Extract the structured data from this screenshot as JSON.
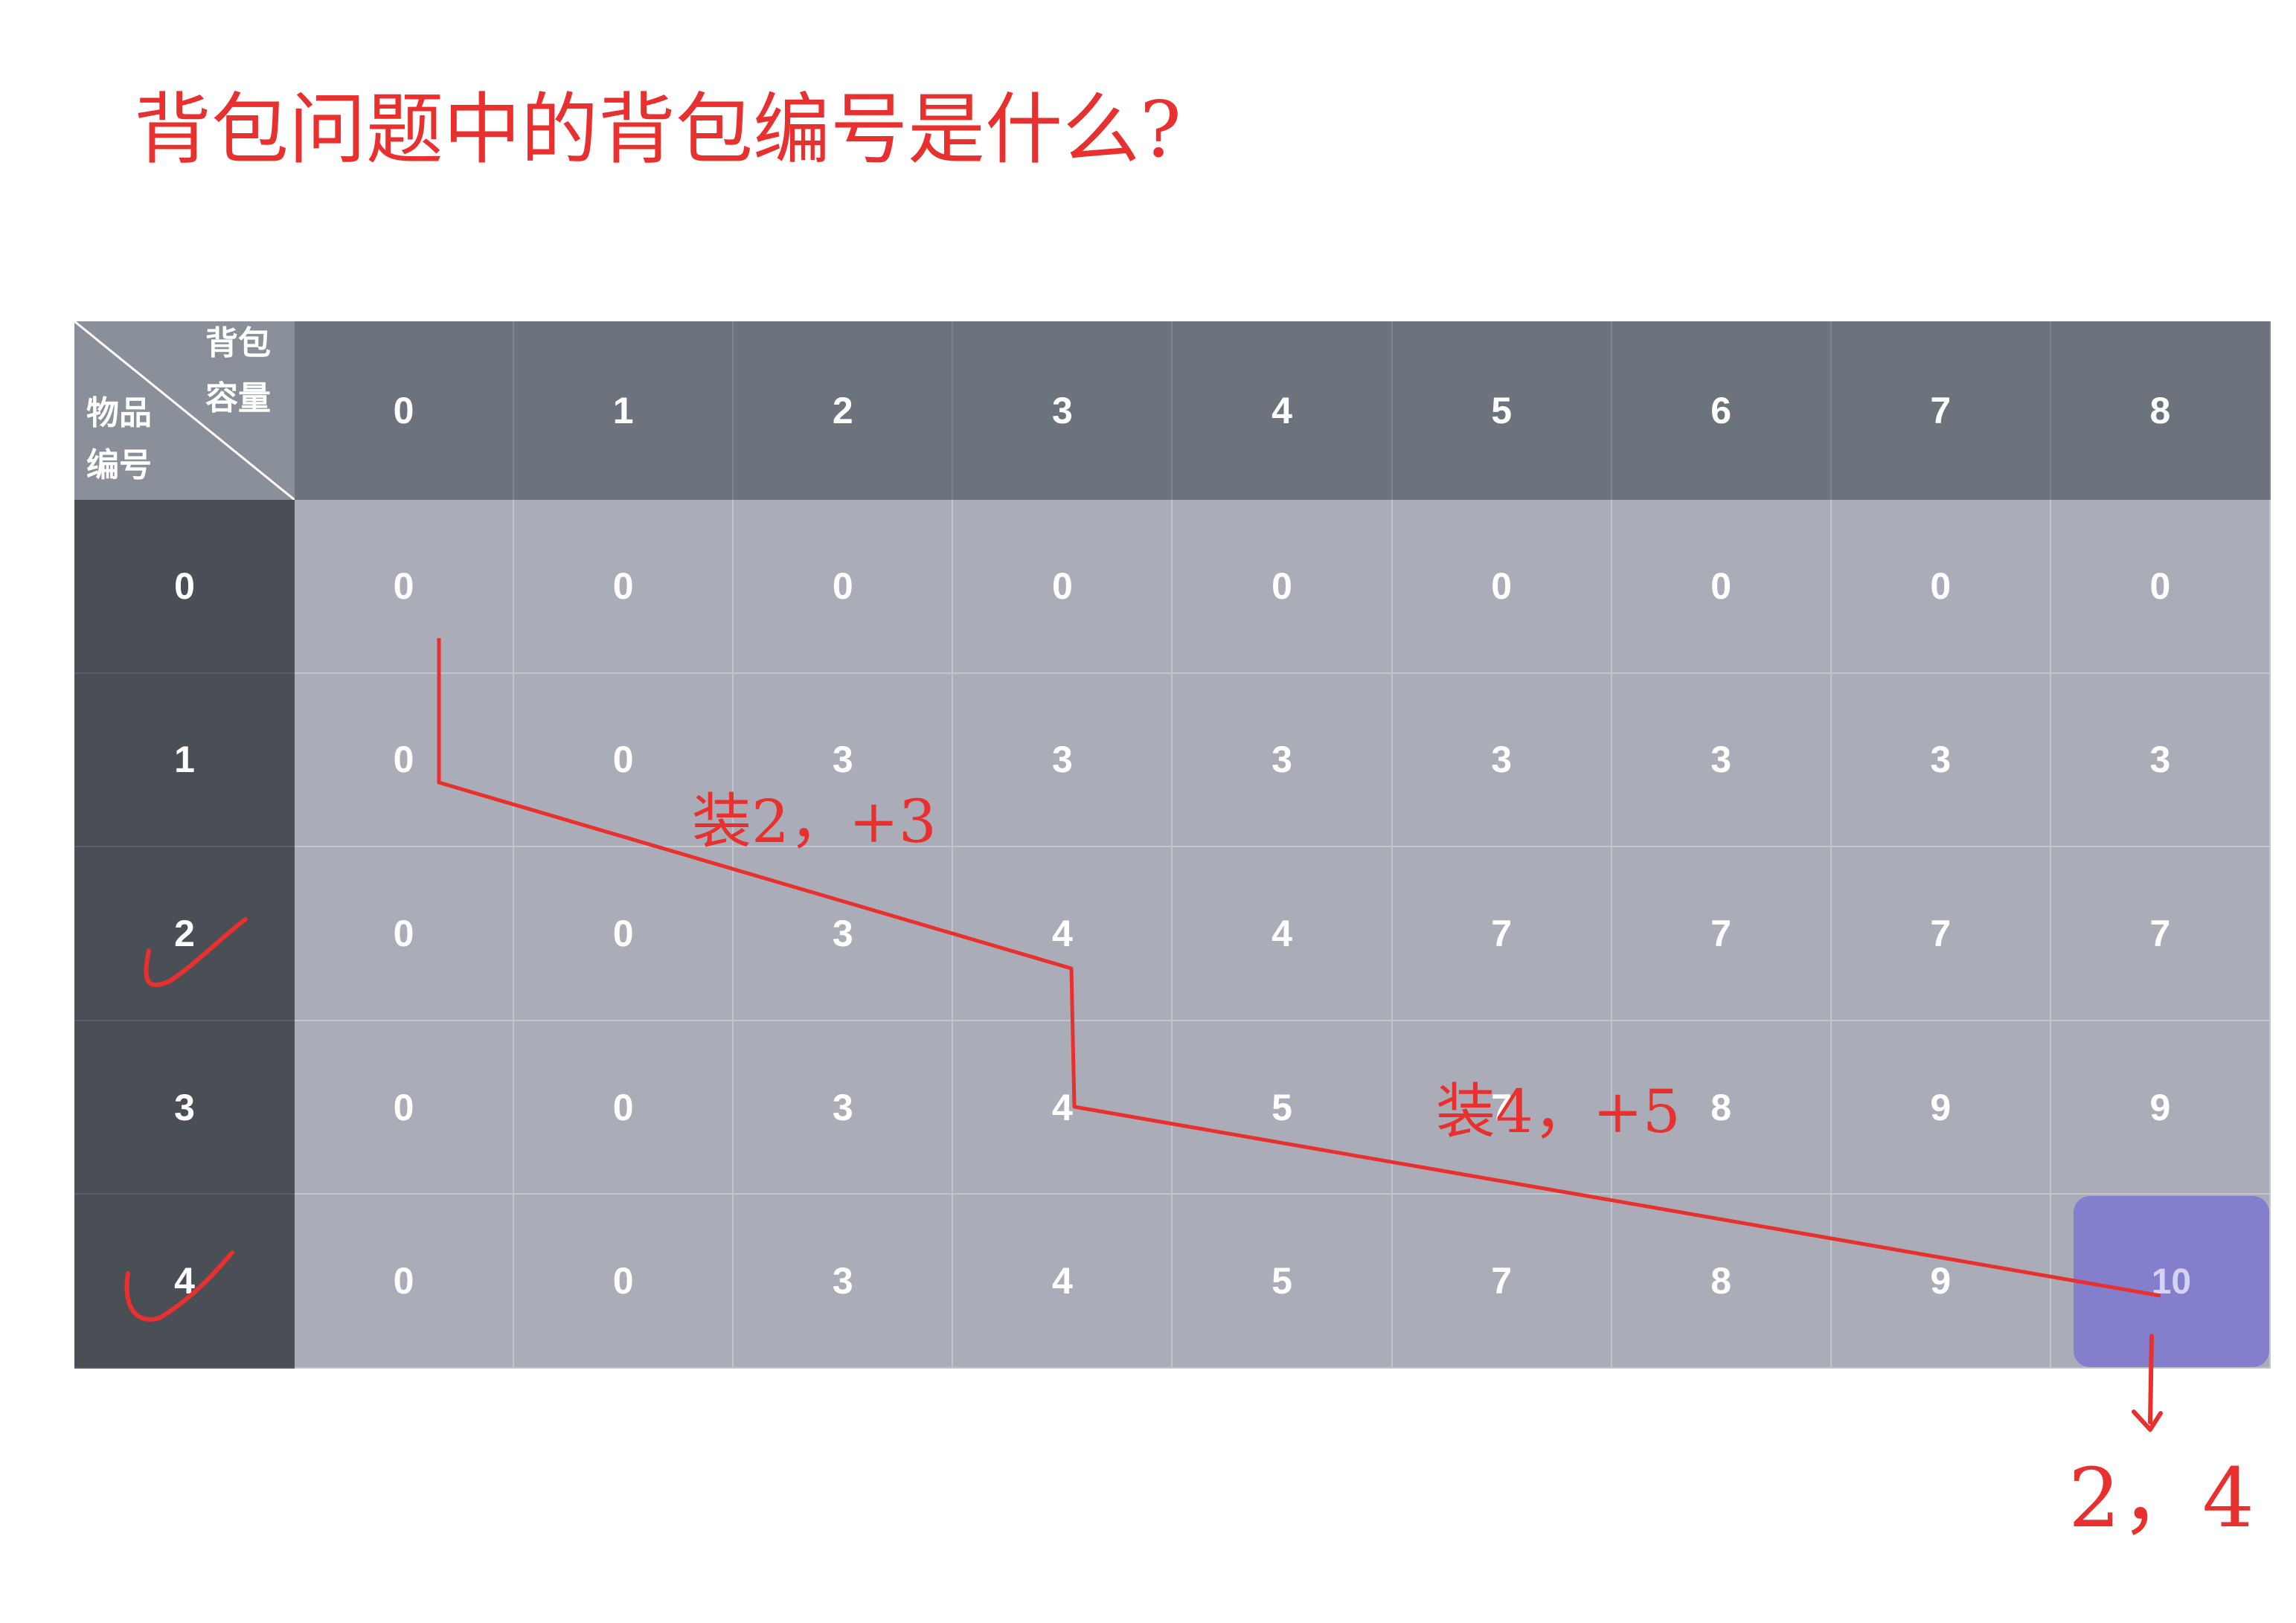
{
  "question": "背包问题中的背包编号是什么?",
  "table": {
    "corner": {
      "capacity_line1": "背包",
      "capacity_line2": "容量",
      "item_line1": "物品",
      "item_line2": "编号"
    },
    "capacity_headers": [
      "0",
      "1",
      "2",
      "3",
      "4",
      "5",
      "6",
      "7",
      "8"
    ],
    "item_headers": [
      "0",
      "1",
      "2",
      "3",
      "4"
    ],
    "rows": [
      [
        "0",
        "0",
        "0",
        "0",
        "0",
        "0",
        "0",
        "0",
        "0"
      ],
      [
        "0",
        "0",
        "3",
        "3",
        "3",
        "3",
        "3",
        "3",
        "3"
      ],
      [
        "0",
        "0",
        "3",
        "4",
        "4",
        "7",
        "7",
        "7",
        "7"
      ],
      [
        "0",
        "0",
        "3",
        "4",
        "5",
        "7",
        "8",
        "9",
        "9"
      ],
      [
        "0",
        "0",
        "3",
        "4",
        "5",
        "7",
        "8",
        "9",
        "10"
      ]
    ],
    "highlighted_value": "10"
  },
  "annotations": {
    "step1": "装2，+3",
    "step2": "装4，+5",
    "answer": "2，4",
    "checked_items": [
      "2",
      "4"
    ]
  },
  "colors": {
    "ink": "#e8302f",
    "header_bg": "#6c737d",
    "row_header_bg": "#4a4e55",
    "cell_bg": "#aaadb7",
    "highlight": "#837fcc"
  }
}
